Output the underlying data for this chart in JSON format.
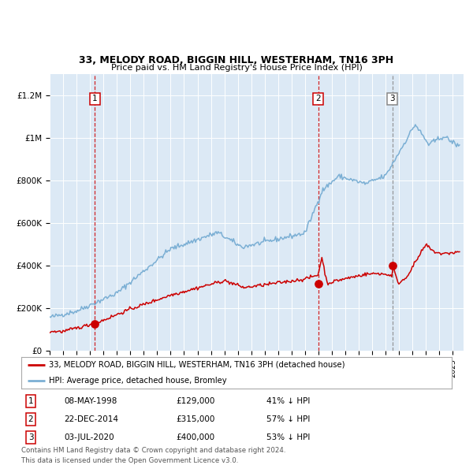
{
  "title1": "33, MELODY ROAD, BIGGIN HILL, WESTERHAM, TN16 3PH",
  "title2": "Price paid vs. HM Land Registry's House Price Index (HPI)",
  "plot_bg": "#dce9f5",
  "ylim": [
    0,
    1300000
  ],
  "yticks": [
    0,
    200000,
    400000,
    600000,
    800000,
    1000000,
    1200000
  ],
  "ytick_labels": [
    "£0",
    "£200K",
    "£400K",
    "£600K",
    "£800K",
    "£1M",
    "£1.2M"
  ],
  "xmin": 1995.0,
  "xmax": 2025.8,
  "sales": [
    {
      "year": 1998.37,
      "price": 129000,
      "label": "1"
    },
    {
      "year": 2014.98,
      "price": 315000,
      "label": "2"
    },
    {
      "year": 2020.5,
      "price": 400000,
      "label": "3"
    }
  ],
  "vline_colors": [
    "#cc0000",
    "#cc0000",
    "#888888"
  ],
  "legend_line1": "33, MELODY ROAD, BIGGIN HILL, WESTERHAM, TN16 3PH (detached house)",
  "legend_line2": "HPI: Average price, detached house, Bromley",
  "table": [
    {
      "num": "1",
      "date": "08-MAY-1998",
      "price": "£129,000",
      "hpi": "41% ↓ HPI"
    },
    {
      "num": "2",
      "date": "22-DEC-2014",
      "price": "£315,000",
      "hpi": "57% ↓ HPI"
    },
    {
      "num": "3",
      "date": "03-JUL-2020",
      "price": "£400,000",
      "hpi": "53% ↓ HPI"
    }
  ],
  "footer": "Contains HM Land Registry data © Crown copyright and database right 2024.\nThis data is licensed under the Open Government Licence v3.0.",
  "hpi_color": "#7bafd4",
  "sale_color": "#cc0000"
}
